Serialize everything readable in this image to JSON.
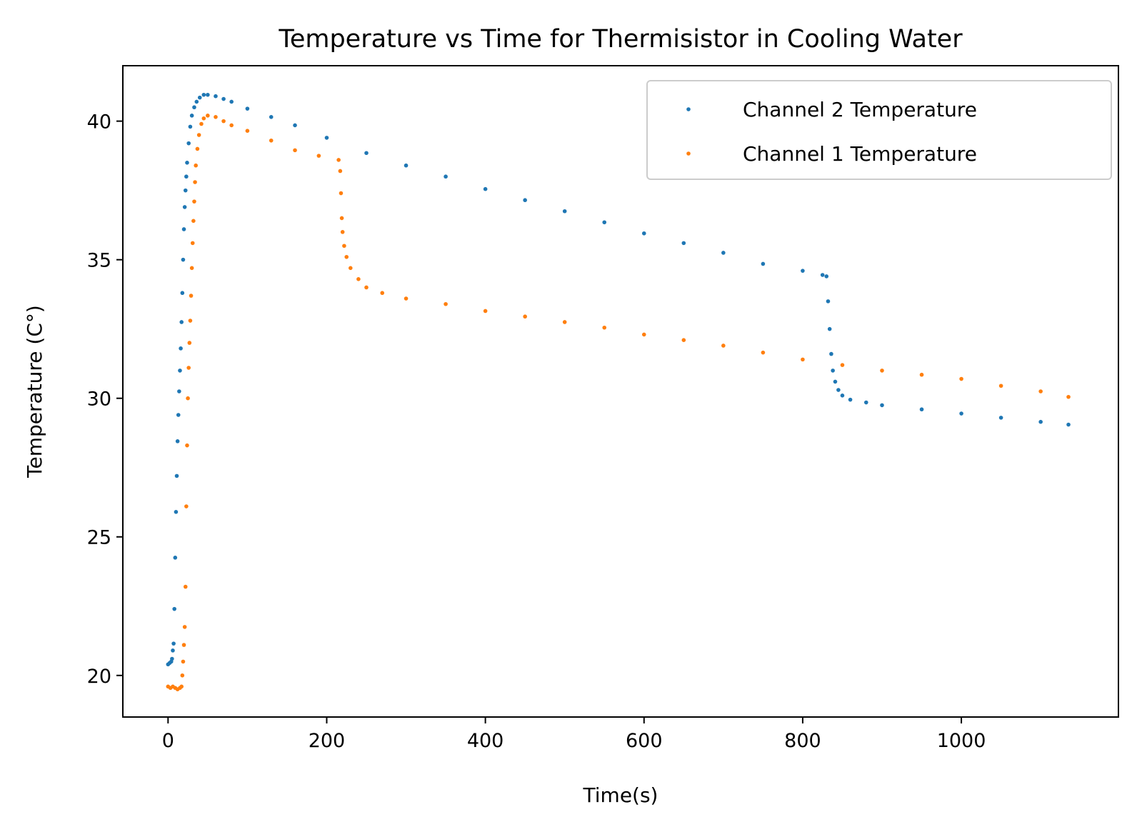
{
  "chart_data": {
    "type": "scatter",
    "title": "Temperature vs Time for Thermisistor in Cooling Water",
    "xlabel": "Time(s)",
    "ylabel": "Temperature (C°)",
    "xlim": [
      -57,
      1198
    ],
    "ylim": [
      18.5,
      42.0
    ],
    "xticks": [
      0,
      200,
      400,
      600,
      800,
      1000
    ],
    "xtick_labels": [
      "0",
      "200",
      "400",
      "600",
      "800",
      "1000"
    ],
    "yticks": [
      20,
      25,
      30,
      35,
      40
    ],
    "ytick_labels": [
      "20",
      "25",
      "30",
      "35",
      "40"
    ],
    "grid": false,
    "legend_placement": "top-right",
    "series": [
      {
        "name": "Channel 2 Temperature",
        "color": "#1f77b4",
        "points": [
          [
            0,
            20.4
          ],
          [
            2,
            20.45
          ],
          [
            4,
            20.5
          ],
          [
            5,
            20.6
          ],
          [
            6,
            20.9
          ],
          [
            7,
            21.15
          ],
          [
            8,
            22.4
          ],
          [
            9,
            24.25
          ],
          [
            10,
            25.9
          ],
          [
            11,
            27.2
          ],
          [
            12,
            28.45
          ],
          [
            13,
            29.4
          ],
          [
            14,
            30.25
          ],
          [
            15,
            31.0
          ],
          [
            16,
            31.8
          ],
          [
            17,
            32.75
          ],
          [
            18,
            33.8
          ],
          [
            19,
            35.0
          ],
          [
            20,
            36.1
          ],
          [
            21,
            36.9
          ],
          [
            22,
            37.5
          ],
          [
            23,
            38.0
          ],
          [
            24,
            38.5
          ],
          [
            26,
            39.2
          ],
          [
            28,
            39.8
          ],
          [
            30,
            40.2
          ],
          [
            33,
            40.5
          ],
          [
            36,
            40.7
          ],
          [
            40,
            40.85
          ],
          [
            45,
            40.95
          ],
          [
            50,
            40.95
          ],
          [
            60,
            40.9
          ],
          [
            70,
            40.8
          ],
          [
            80,
            40.7
          ],
          [
            100,
            40.45
          ],
          [
            130,
            40.15
          ],
          [
            160,
            39.85
          ],
          [
            200,
            39.4
          ],
          [
            250,
            38.85
          ],
          [
            300,
            38.4
          ],
          [
            350,
            38.0
          ],
          [
            400,
            37.55
          ],
          [
            450,
            37.15
          ],
          [
            500,
            36.75
          ],
          [
            550,
            36.35
          ],
          [
            600,
            35.95
          ],
          [
            650,
            35.6
          ],
          [
            700,
            35.25
          ],
          [
            750,
            34.85
          ],
          [
            800,
            34.6
          ],
          [
            825,
            34.45
          ],
          [
            830,
            34.4
          ],
          [
            832,
            33.5
          ],
          [
            834,
            32.5
          ],
          [
            836,
            31.6
          ],
          [
            838,
            31.0
          ],
          [
            841,
            30.6
          ],
          [
            845,
            30.3
          ],
          [
            850,
            30.1
          ],
          [
            860,
            29.95
          ],
          [
            880,
            29.85
          ],
          [
            900,
            29.75
          ],
          [
            950,
            29.6
          ],
          [
            1000,
            29.45
          ],
          [
            1050,
            29.3
          ],
          [
            1100,
            29.15
          ],
          [
            1135,
            29.05
          ]
        ]
      },
      {
        "name": "Channel 1 Temperature",
        "color": "#ff7f0e",
        "points": [
          [
            0,
            19.6
          ],
          [
            3,
            19.55
          ],
          [
            6,
            19.6
          ],
          [
            9,
            19.55
          ],
          [
            12,
            19.5
          ],
          [
            15,
            19.55
          ],
          [
            17,
            19.6
          ],
          [
            18,
            20.0
          ],
          [
            19,
            20.5
          ],
          [
            20,
            21.1
          ],
          [
            21,
            21.75
          ],
          [
            22,
            23.2
          ],
          [
            23,
            26.1
          ],
          [
            24,
            28.3
          ],
          [
            25,
            30.0
          ],
          [
            26,
            31.1
          ],
          [
            27,
            32.0
          ],
          [
            28,
            32.8
          ],
          [
            29,
            33.7
          ],
          [
            30,
            34.7
          ],
          [
            31,
            35.6
          ],
          [
            32,
            36.4
          ],
          [
            33,
            37.1
          ],
          [
            34,
            37.8
          ],
          [
            35,
            38.4
          ],
          [
            37,
            39.0
          ],
          [
            39,
            39.5
          ],
          [
            42,
            39.9
          ],
          [
            45,
            40.1
          ],
          [
            50,
            40.2
          ],
          [
            60,
            40.15
          ],
          [
            70,
            40.0
          ],
          [
            80,
            39.85
          ],
          [
            100,
            39.65
          ],
          [
            130,
            39.3
          ],
          [
            160,
            38.95
          ],
          [
            190,
            38.75
          ],
          [
            215,
            38.6
          ],
          [
            217,
            38.2
          ],
          [
            218,
            37.4
          ],
          [
            219,
            36.5
          ],
          [
            220,
            36.0
          ],
          [
            222,
            35.5
          ],
          [
            225,
            35.1
          ],
          [
            230,
            34.7
          ],
          [
            240,
            34.3
          ],
          [
            250,
            34.0
          ],
          [
            270,
            33.8
          ],
          [
            300,
            33.6
          ],
          [
            350,
            33.4
          ],
          [
            400,
            33.15
          ],
          [
            450,
            32.95
          ],
          [
            500,
            32.75
          ],
          [
            550,
            32.55
          ],
          [
            600,
            32.3
          ],
          [
            650,
            32.1
          ],
          [
            700,
            31.9
          ],
          [
            750,
            31.65
          ],
          [
            800,
            31.4
          ],
          [
            850,
            31.2
          ],
          [
            900,
            31.0
          ],
          [
            950,
            30.85
          ],
          [
            1000,
            30.7
          ],
          [
            1050,
            30.45
          ],
          [
            1100,
            30.25
          ],
          [
            1135,
            30.05
          ]
        ]
      }
    ]
  }
}
